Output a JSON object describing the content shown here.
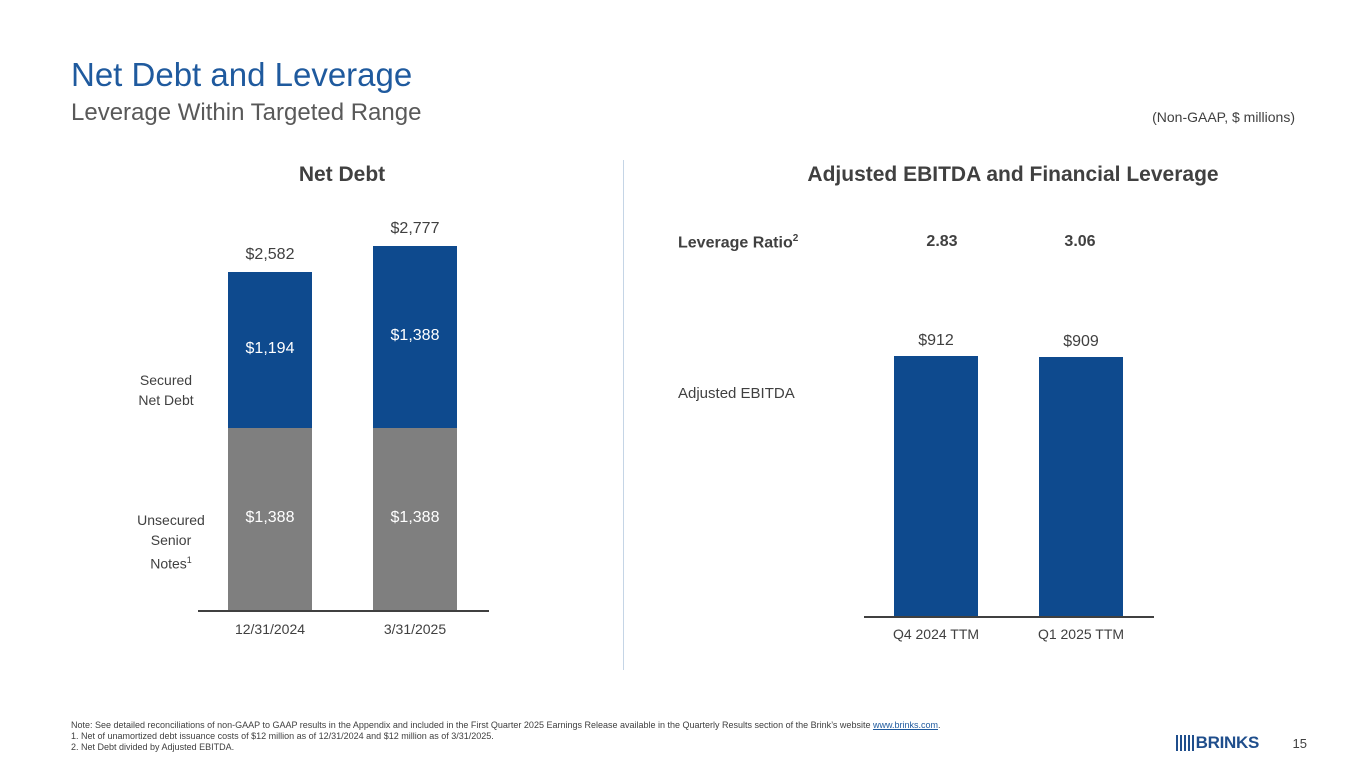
{
  "header": {
    "title": "Net Debt and Leverage",
    "subtitle": "Leverage Within Targeted Range",
    "units_note": "(Non-GAAP, $ millions)"
  },
  "colors": {
    "secured": "#0e4a8e",
    "unsecured": "#7f7f7f",
    "ebitda": "#0e4a8e",
    "title": "#1f5a9e"
  },
  "chart_data": [
    {
      "type": "bar",
      "stacked": true,
      "title": "Net Debt",
      "categories": [
        "12/31/2024",
        "3/31/2025"
      ],
      "series": [
        {
          "name": "Unsecured Senior Notes",
          "values": [
            1388,
            1388
          ],
          "labels": [
            "$1,388",
            "$1,388"
          ]
        },
        {
          "name": "Secured Net Debt",
          "values": [
            1194,
            1388
          ],
          "labels": [
            "$1,194",
            "$1,388"
          ]
        }
      ],
      "totals": [
        2582,
        2777
      ],
      "total_labels": [
        "$2,582",
        "$2,777"
      ],
      "row_labels": {
        "secured_line1": "Secured",
        "secured_line2": "Net Debt",
        "unsecured_line1": "Unsecured",
        "unsecured_line2": "Senior",
        "unsecured_line3": "Notes",
        "unsecured_sup": "1"
      },
      "ylim": [
        0,
        2900
      ]
    },
    {
      "type": "bar",
      "title": "Adjusted EBITDA and Financial Leverage",
      "categories": [
        "Q4 2024 TTM",
        "Q1 2025 TTM"
      ],
      "series": [
        {
          "name": "Adjusted EBITDA",
          "values": [
            912,
            909
          ],
          "labels": [
            "$912",
            "$909"
          ]
        }
      ],
      "leverage_ratio": {
        "label": "Leverage Ratio",
        "sup": "2",
        "values": [
          "2.83",
          "3.06"
        ]
      },
      "ebitda_label": "Adjusted EBITDA",
      "ylim": [
        0,
        1000
      ]
    }
  ],
  "footer": {
    "note": "Note: See detailed reconciliations of non-GAAP to GAAP results in the Appendix and included in the First Quarter 2025 Earnings Release available in the Quarterly Results section of the Brink’s website",
    "note_link": "www.brinks.com",
    "note_end": ".",
    "footnote1": "1.  Net of unamortized debt issuance costs of $12 million as of 12/31/2024 and $12 million as of 3/31/2025.",
    "footnote2": "2.  Net Debt divided by Adjusted EBITDA.",
    "logo_text": "BRINKS",
    "page_number": "15"
  }
}
